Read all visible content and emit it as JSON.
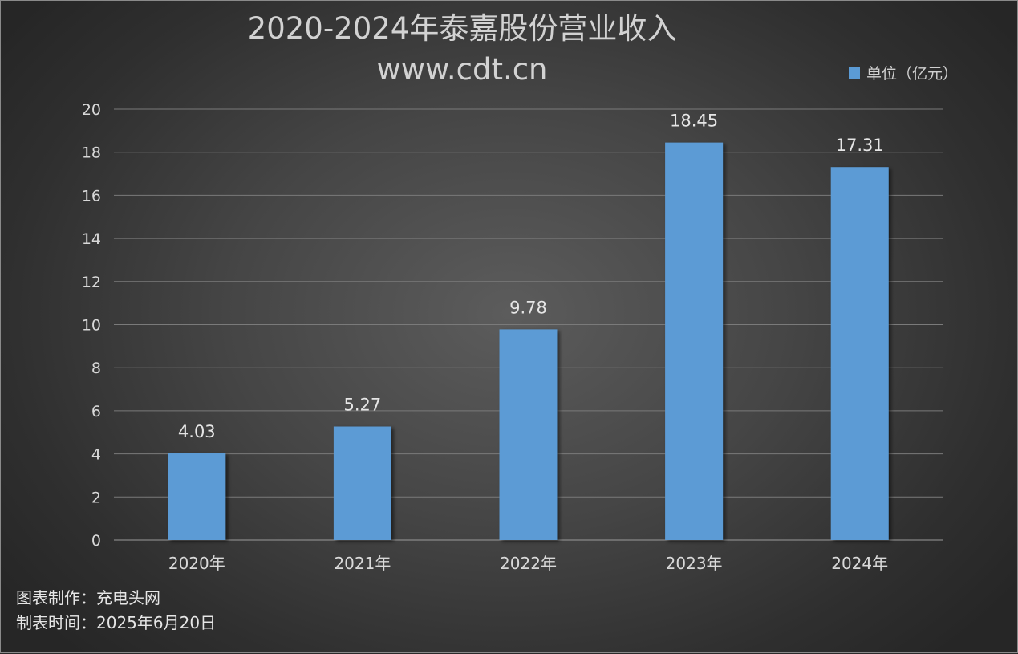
{
  "colors": {
    "bar": "#5b9bd5",
    "grid": "#7a7a7a",
    "axis": "#9a9a9a"
  },
  "chart_data": {
    "type": "bar",
    "title": "2020-2024年泰嘉股份营业收入",
    "subtitle": "www.cdt.cn",
    "categories": [
      "2020年",
      "2021年",
      "2022年",
      "2023年",
      "2024年"
    ],
    "series": [
      {
        "name": "单位（亿元）",
        "values": [
          4.03,
          5.27,
          9.78,
          18.45,
          17.31
        ]
      }
    ],
    "data_labels": [
      "4.03",
      "5.27",
      "9.78",
      "18.45",
      "17.31"
    ],
    "ylim": [
      0,
      20
    ],
    "yticks": [
      0,
      2,
      4,
      6,
      8,
      10,
      12,
      14,
      16,
      18,
      20
    ],
    "grid": true,
    "legend_position": "top-right"
  },
  "footer": {
    "line1": "图表制作：充电头网",
    "line2": "制表时间：2025年6月20日"
  }
}
